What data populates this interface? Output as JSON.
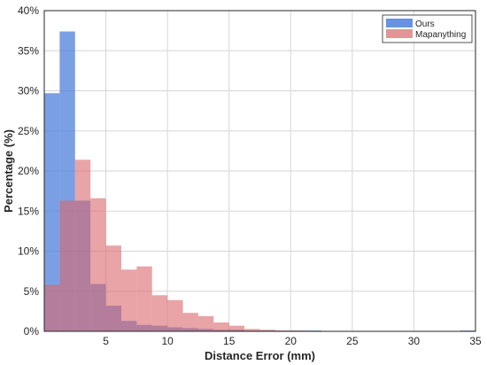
{
  "chart_data": {
    "type": "bar",
    "subtype": "overlapping-histogram",
    "xlabel": "Distance Error (mm)",
    "ylabel": "Percentage (%)",
    "xlim": [
      0,
      35
    ],
    "ylim": [
      0,
      40
    ],
    "x_ticks": [
      5,
      10,
      15,
      20,
      25,
      30,
      35
    ],
    "y_ticks": [
      0,
      5,
      10,
      15,
      20,
      25,
      30,
      35,
      40
    ],
    "y_tick_labels": [
      "0%",
      "5%",
      "10%",
      "15%",
      "20%",
      "25%",
      "30%",
      "35%",
      "40%"
    ],
    "grid": true,
    "legend_position": "top-right",
    "bin_width": 1.25,
    "series": [
      {
        "name": "Ours",
        "color": "#4f7fdb",
        "opacity": 0.75,
        "bins": [
          {
            "x0": 0.0,
            "value": 29.7
          },
          {
            "x0": 1.25,
            "value": 37.4
          },
          {
            "x0": 2.5,
            "value": 16.3
          },
          {
            "x0": 3.75,
            "value": 5.9
          },
          {
            "x0": 5.0,
            "value": 3.2
          },
          {
            "x0": 6.25,
            "value": 1.3
          },
          {
            "x0": 7.5,
            "value": 0.8
          },
          {
            "x0": 8.75,
            "value": 0.7
          },
          {
            "x0": 10.0,
            "value": 0.5
          },
          {
            "x0": 11.25,
            "value": 0.4
          },
          {
            "x0": 12.5,
            "value": 0.3
          },
          {
            "x0": 13.75,
            "value": 0.2
          },
          {
            "x0": 15.0,
            "value": 0.2
          },
          {
            "x0": 16.25,
            "value": 0.1
          },
          {
            "x0": 17.5,
            "value": 0.1
          },
          {
            "x0": 18.75,
            "value": 0.1
          },
          {
            "x0": 20.0,
            "value": 0.1
          },
          {
            "x0": 21.25,
            "value": 0.1
          },
          {
            "x0": 22.5,
            "value": 0.05
          },
          {
            "x0": 23.75,
            "value": 0.05
          },
          {
            "x0": 25.0,
            "value": 0.05
          },
          {
            "x0": 26.25,
            "value": 0.05
          },
          {
            "x0": 27.5,
            "value": 0.05
          },
          {
            "x0": 28.75,
            "value": 0.05
          },
          {
            "x0": 30.0,
            "value": 0.05
          },
          {
            "x0": 31.25,
            "value": 0.05
          },
          {
            "x0": 32.5,
            "value": 0.05
          },
          {
            "x0": 33.75,
            "value": 0.1
          }
        ]
      },
      {
        "name": "Mapanything",
        "color": "#d9676b",
        "opacity": 0.6,
        "bins": [
          {
            "x0": 0.0,
            "value": 5.8
          },
          {
            "x0": 1.25,
            "value": 16.3
          },
          {
            "x0": 2.5,
            "value": 21.4
          },
          {
            "x0": 3.75,
            "value": 16.6
          },
          {
            "x0": 5.0,
            "value": 10.7
          },
          {
            "x0": 6.25,
            "value": 7.7
          },
          {
            "x0": 7.5,
            "value": 8.1
          },
          {
            "x0": 8.75,
            "value": 4.5
          },
          {
            "x0": 10.0,
            "value": 3.9
          },
          {
            "x0": 11.25,
            "value": 2.3
          },
          {
            "x0": 12.5,
            "value": 1.9
          },
          {
            "x0": 13.75,
            "value": 1.1
          },
          {
            "x0": 15.0,
            "value": 0.7
          },
          {
            "x0": 16.25,
            "value": 0.3
          },
          {
            "x0": 17.5,
            "value": 0.2
          },
          {
            "x0": 18.75,
            "value": 0.1
          },
          {
            "x0": 20.0,
            "value": 0.1
          }
        ]
      }
    ]
  }
}
